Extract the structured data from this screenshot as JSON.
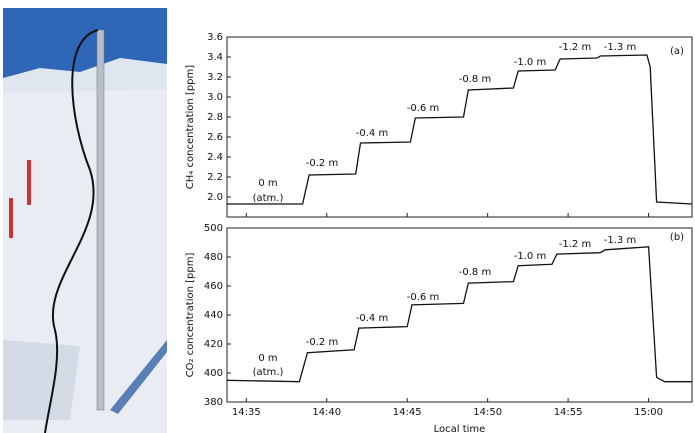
{
  "chart_data": [
    {
      "type": "line",
      "ylabel": "CH₄ concentration [ppm]",
      "series": [
        {
          "color": "#111111",
          "x": [
            873.8,
            878.5,
            878.9,
            881.8,
            882.1,
            885.2,
            885.5,
            888.5,
            888.8,
            891.6,
            891.9,
            894.2,
            894.5,
            896.8,
            897.0,
            899.9,
            900.1,
            900.5,
            902.7
          ],
          "values": [
            1.93,
            1.93,
            2.22,
            2.23,
            2.54,
            2.55,
            2.79,
            2.8,
            3.07,
            3.09,
            3.26,
            3.27,
            3.38,
            3.39,
            3.41,
            3.42,
            3.3,
            1.95,
            1.93
          ]
        }
      ],
      "xlim": [
        873.8,
        902.7
      ],
      "xticks": [
        875,
        880,
        885,
        890,
        895,
        900
      ],
      "ylim": [
        1.8,
        3.6
      ],
      "yticks": [
        {
          "value": 2,
          "label": "2.0"
        },
        2.2,
        2.4,
        2.6,
        2.8,
        {
          "value": 3,
          "label": "3.0"
        },
        3.2,
        3.4,
        3.6
      ],
      "annotations": [
        "0 m",
        "(atm.)",
        "-0.2 m",
        "-0.4 m",
        "-0.6 m",
        "-0.8 m",
        "-1.0 m",
        "-1.2 m",
        "-1.3 m",
        "(a)"
      ]
    },
    {
      "type": "line",
      "ylabel": "CO₂ concentration [ppm]",
      "xlabel": "Local time",
      "series": [
        {
          "color": "#111111",
          "x": [
            873.8,
            878.3,
            878.8,
            881.7,
            882.0,
            885.0,
            885.3,
            888.5,
            888.8,
            891.6,
            891.9,
            894.0,
            894.3,
            897.0,
            897.3,
            900.0,
            900.5,
            901.0,
            902.7
          ],
          "values": [
            395,
            394,
            414,
            416,
            431,
            432,
            447,
            448,
            462,
            463,
            474,
            475,
            482,
            483,
            485,
            487,
            397,
            394,
            394
          ]
        }
      ],
      "xlim": [
        873.8,
        902.7
      ],
      "xticks": [
        {
          "value": 875,
          "label": "14:35"
        },
        {
          "value": 880,
          "label": "14:40"
        },
        {
          "value": 885,
          "label": "14:45"
        },
        {
          "value": 890,
          "label": "14:50"
        },
        {
          "value": 895,
          "label": "14:55"
        },
        {
          "value": 900,
          "label": "15:00"
        }
      ],
      "ylim": [
        380,
        500
      ],
      "yticks": [
        380,
        400,
        420,
        440,
        460,
        480,
        500
      ],
      "annotations": [
        "0 m",
        "(atm.)",
        "-0.2 m",
        "-0.4 m",
        "-0.6 m",
        "-0.8 m",
        "-1.0 m",
        "-1.2 m",
        "-1.3 m",
        "(b)"
      ]
    }
  ]
}
